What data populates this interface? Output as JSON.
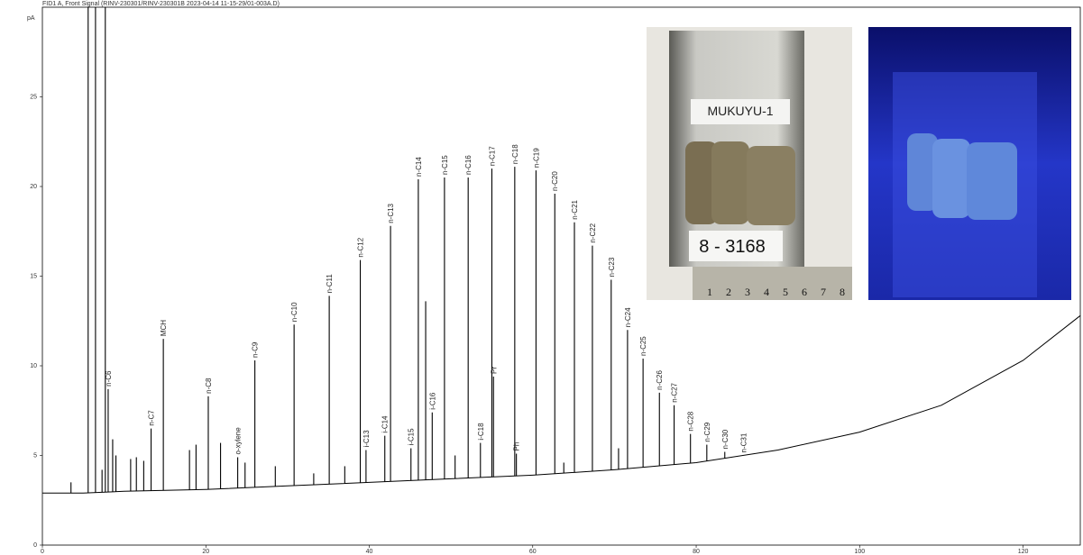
{
  "chart_data": {
    "type": "chromatogram",
    "title": "FID1 A, Front Signal (RINV-230301/RINV-230301B 2023-04-14 11-15-29/01-003A.D)",
    "y_unit": "pA",
    "color": "#000000",
    "xlim": [
      0,
      127
    ],
    "ylim": [
      0,
      30
    ],
    "xticks": [
      0,
      20,
      40,
      60,
      80,
      100,
      120
    ],
    "yticks": [
      0,
      5,
      10,
      15,
      20,
      25
    ],
    "baseline": {
      "x": [
        0,
        3,
        5,
        10,
        20,
        30,
        40,
        50,
        60,
        70,
        80,
        90,
        100,
        110,
        120,
        127
      ],
      "values": [
        2.9,
        2.9,
        2.9,
        3.0,
        3.1,
        3.3,
        3.5,
        3.7,
        3.9,
        4.2,
        4.6,
        5.3,
        6.3,
        7.8,
        10.3,
        12.8
      ]
    },
    "peaks": {
      "x": [
        3.5,
        5.6,
        6.5,
        7.3,
        7.7,
        8.05,
        8.6,
        9.0,
        10.8,
        11.5,
        12.4,
        13.3,
        14.8,
        18.0,
        18.8,
        20.3,
        21.8,
        23.9,
        24.8,
        26.0,
        28.5,
        30.8,
        33.2,
        35.1,
        37.0,
        38.9,
        39.6,
        41.9,
        42.6,
        45.1,
        46.0,
        46.9,
        47.7,
        49.2,
        50.5,
        52.1,
        53.6,
        55.0,
        55.2,
        57.8,
        58.0,
        60.4,
        62.7,
        63.8,
        65.1,
        67.3,
        69.6,
        70.5,
        71.6,
        73.5,
        75.5,
        77.3,
        79.3,
        81.3,
        83.5,
        85.8
      ],
      "values": [
        3.5,
        30,
        30,
        4.2,
        30,
        8.7,
        5.9,
        5.0,
        4.8,
        4.9,
        4.7,
        6.5,
        11.5,
        5.3,
        5.6,
        8.3,
        5.7,
        4.9,
        4.6,
        10.3,
        4.4,
        12.3,
        4.0,
        13.9,
        4.4,
        15.9,
        5.3,
        6.1,
        17.8,
        5.4,
        20.4,
        13.6,
        7.4,
        20.5,
        5.0,
        20.5,
        5.7,
        21.0,
        9.4,
        21.1,
        5.1,
        20.9,
        19.6,
        4.6,
        18.0,
        16.7,
        14.8,
        5.4,
        12.0,
        10.4,
        8.5,
        7.8,
        6.2,
        5.6,
        5.2,
        5.0
      ],
      "labels": [
        null,
        null,
        null,
        null,
        null,
        "n-C6",
        null,
        null,
        null,
        null,
        null,
        "n-C7",
        "MCH",
        null,
        null,
        "n-C8",
        null,
        "o-xylene",
        null,
        "n-C9",
        null,
        "n-C10",
        null,
        "n-C11",
        null,
        "n-C12",
        "i-C13",
        "i-C14",
        "n-C13",
        "i-C15",
        "n-C14",
        null,
        "i-C16",
        "n-C15",
        null,
        "n-C16",
        "i-C18",
        "n-C17",
        "Pr",
        "n-C18",
        "Ph",
        "n-C19",
        "n-C20",
        null,
        "n-C21",
        "n-C22",
        "n-C23",
        null,
        "n-C24",
        "n-C25",
        "n-C26",
        "n-C27",
        "n-C28",
        "n-C29",
        "n-C30",
        "n-C31"
      ]
    }
  },
  "photos": {
    "sample_tag": "MUKUYU-1",
    "depth_tag": "8 - 3168",
    "ruler_labels": [
      "1",
      "2",
      "3",
      "4",
      "5",
      "6",
      "7",
      "8"
    ]
  }
}
